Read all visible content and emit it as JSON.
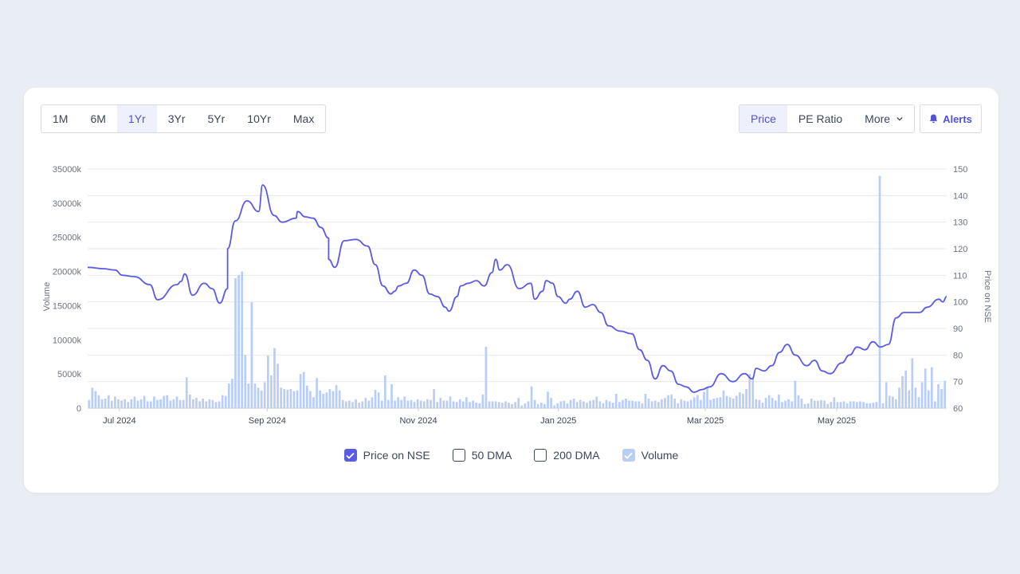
{
  "range_tabs": [
    "1M",
    "6M",
    "1Yr",
    "3Yr",
    "5Yr",
    "10Yr",
    "Max"
  ],
  "active_range": "1Yr",
  "metric_tabs": {
    "price": "Price",
    "pe": "PE Ratio",
    "more": "More"
  },
  "alerts_label": "Alerts",
  "legend": [
    {
      "label": "Price on NSE",
      "state": "checked"
    },
    {
      "label": "50 DMA",
      "state": "unchecked"
    },
    {
      "label": "200 DMA",
      "state": "unchecked"
    },
    {
      "label": "Volume",
      "state": "volume"
    }
  ],
  "colors": {
    "price_line": "#5b5ce4",
    "volume_bar": "#b9cdf7",
    "accent": "#5053d7",
    "grid": "#e6e8ee"
  },
  "chart_data": {
    "type": "line+bar",
    "x_range": [
      "2024-06-15",
      "2025-06-13"
    ],
    "x_ticks": [
      {
        "label": "Jul 2024",
        "t": 0.037
      },
      {
        "label": "Sep 2024",
        "t": 0.209
      },
      {
        "label": "Nov 2024",
        "t": 0.385
      },
      {
        "label": "Jan 2025",
        "t": 0.548
      },
      {
        "label": "Mar 2025",
        "t": 0.719
      },
      {
        "label": "May 2025",
        "t": 0.872
      }
    ],
    "y_left": {
      "label": "Volume",
      "min": 0,
      "max": 35000,
      "ticks": [
        "0",
        "5000k",
        "10000k",
        "15000k",
        "20000k",
        "25000k",
        "30000k",
        "35000k"
      ]
    },
    "y_right": {
      "label": "Price on NSE",
      "min": 60,
      "max": 150,
      "ticks": [
        "60",
        "70",
        "80",
        "90",
        "100",
        "110",
        "120",
        "130",
        "140",
        "150"
      ]
    },
    "price_series": {
      "name": "Price on NSE",
      "points": [
        [
          0.0,
          113
        ],
        [
          0.02,
          112.5
        ],
        [
          0.035,
          112
        ],
        [
          0.045,
          110
        ],
        [
          0.06,
          109.5
        ],
        [
          0.08,
          106.5
        ],
        [
          0.09,
          100.8
        ],
        [
          0.115,
          106.5
        ],
        [
          0.12,
          107.7
        ],
        [
          0.125,
          110.5
        ],
        [
          0.135,
          102.5
        ],
        [
          0.15,
          107
        ],
        [
          0.16,
          105
        ],
        [
          0.17,
          99.5
        ],
        [
          0.18,
          105
        ],
        [
          0.18,
          120
        ],
        [
          0.19,
          130.5
        ],
        [
          0.205,
          138
        ],
        [
          0.22,
          134
        ],
        [
          0.225,
          144
        ],
        [
          0.24,
          132.5
        ],
        [
          0.25,
          130
        ],
        [
          0.268,
          131.5
        ],
        [
          0.27,
          134
        ],
        [
          0.28,
          132
        ],
        [
          0.29,
          131.5
        ],
        [
          0.3,
          128
        ],
        [
          0.31,
          124
        ],
        [
          0.31,
          116
        ],
        [
          0.318,
          113
        ],
        [
          0.33,
          123
        ],
        [
          0.345,
          123.5
        ],
        [
          0.36,
          121
        ],
        [
          0.37,
          114
        ],
        [
          0.38,
          106
        ],
        [
          0.39,
          103
        ],
        [
          0.395,
          104
        ],
        [
          0.4,
          106
        ],
        [
          0.41,
          107
        ],
        [
          0.42,
          112
        ],
        [
          0.43,
          110
        ],
        [
          0.44,
          103
        ],
        [
          0.45,
          102
        ],
        [
          0.46,
          98
        ],
        [
          0.465,
          96.5
        ],
        [
          0.475,
          102
        ],
        [
          0.48,
          106
        ],
        [
          0.49,
          107
        ],
        [
          0.5,
          108
        ],
        [
          0.51,
          106
        ],
        [
          0.52,
          111
        ],
        [
          0.525,
          116
        ],
        [
          0.53,
          112
        ],
        [
          0.54,
          114
        ],
        [
          0.555,
          105
        ],
        [
          0.57,
          107
        ],
        [
          0.575,
          101
        ],
        [
          0.585,
          104
        ],
        [
          0.59,
          108
        ],
        [
          0.598,
          107
        ],
        [
          0.605,
          102
        ],
        [
          0.615,
          99.5
        ],
        [
          0.62,
          101
        ],
        [
          0.63,
          104
        ],
        [
          0.64,
          98
        ],
        [
          0.65,
          99
        ],
        [
          0.66,
          96
        ],
        [
          0.67,
          91
        ],
        [
          0.685,
          89
        ],
        [
          0.7,
          88
        ],
        [
          0.71,
          82
        ],
        [
          0.72,
          78
        ],
        [
          0.73,
          71
        ],
        [
          0.74,
          76
        ],
        [
          0.75,
          74
        ],
        [
          0.76,
          69
        ],
        [
          0.77,
          68
        ],
        [
          0.78,
          66
        ],
        [
          0.79,
          67
        ],
        [
          0.8,
          68
        ],
        [
          0.815,
          73
        ],
        [
          0.83,
          70
        ],
        [
          0.845,
          73
        ],
        [
          0.855,
          71
        ],
        [
          0.86,
          75
        ],
        [
          0.87,
          74
        ],
        [
          0.88,
          76
        ],
        [
          0.89,
          81
        ],
        [
          0.9,
          84
        ],
        [
          0.91,
          80
        ],
        [
          0.925,
          76
        ],
        [
          0.935,
          78
        ],
        [
          0.945,
          74
        ],
        [
          0.955,
          73
        ],
        [
          0.97,
          77
        ],
        [
          0.98,
          80
        ],
        [
          0.99,
          83
        ],
        [
          1.0,
          82
        ],
        [
          1.01,
          85
        ],
        [
          1.02,
          83
        ],
        [
          1.03,
          84
        ],
        [
          1.04,
          94
        ],
        [
          1.05,
          96
        ],
        [
          1.07,
          96
        ],
        [
          1.08,
          98
        ],
        [
          1.095,
          101
        ],
        [
          1.1,
          100
        ],
        [
          1.105,
          102
        ]
      ]
    },
    "volume_series": {
      "name": "Volume",
      "unit": "k shares",
      "values": [
        1200,
        3000,
        2500,
        1900,
        1300,
        1400,
        1900,
        1100,
        1700,
        1300,
        1100,
        1300,
        900,
        1300,
        1700,
        1100,
        1300,
        1800,
        1000,
        1000,
        1700,
        1200,
        1300,
        1800,
        1900,
        1100,
        1300,
        1700,
        1200,
        1200,
        4500,
        2000,
        1300,
        1500,
        1000,
        1400,
        1000,
        1300,
        1200,
        900,
        1000,
        1900,
        1800,
        3600,
        4300,
        19000,
        19500,
        20000,
        7800,
        3600,
        15500,
        3600,
        3000,
        2600,
        3800,
        7700,
        4800,
        8800,
        6500,
        3000,
        2800,
        2700,
        2800,
        2500,
        2600,
        5000,
        5300,
        3300,
        2500,
        1600,
        4400,
        2600,
        2100,
        2300,
        2800,
        2500,
        3400,
        2600,
        1200,
        1000,
        1100,
        900,
        1300,
        800,
        1000,
        1500,
        1100,
        1600,
        2700,
        2300,
        1100,
        4800,
        1200,
        3500,
        1100,
        1600,
        1200,
        1700,
        1100,
        1200,
        900,
        1300,
        1100,
        1000,
        1300,
        1200,
        2800,
        900,
        1500,
        1100,
        1100,
        1700,
        1000,
        900,
        1300,
        1000,
        1600,
        900,
        1100,
        800,
        700,
        2000,
        9000,
        1000,
        1000,
        1000,
        900,
        800,
        1000,
        800,
        600,
        900,
        1500,
        400,
        700,
        1000,
        3200,
        1200,
        600,
        800,
        600,
        2400,
        1500,
        400,
        700,
        1000,
        1100,
        700,
        1200,
        1400,
        900,
        1200,
        1000,
        800,
        1100,
        1200,
        1700,
        1000,
        700,
        1200,
        1000,
        800,
        2100,
        900,
        1200,
        1400,
        1100,
        1100,
        1000,
        1000,
        700,
        2100,
        1400,
        1000,
        1100,
        900,
        1300,
        1500,
        1900,
        2000,
        1400,
        700,
        1300,
        1100,
        1000,
        1200,
        1600,
        1900,
        1200,
        2400,
        3000,
        1200,
        1400,
        1500,
        1600,
        2600,
        1800,
        1600,
        1400,
        1800,
        2300,
        2100,
        2800,
        5000,
        4600,
        1300,
        1200,
        800,
        1500,
        1900,
        1500,
        1100,
        2000,
        900,
        1100,
        1300,
        1000,
        4000,
        1900,
        1400,
        600,
        700,
        1400,
        1100,
        1100,
        1200,
        1100,
        600,
        900,
        1600,
        900,
        900,
        1000,
        700,
        1000,
        1000,
        900,
        1000,
        900,
        700,
        700,
        800,
        900,
        34000,
        700,
        3800,
        1800,
        1700,
        1300,
        3000,
        4700,
        5500,
        2600,
        7300,
        3000,
        1600,
        3800,
        5800,
        2600,
        6000,
        1000,
        3500,
        2800,
        4000
      ]
    }
  }
}
